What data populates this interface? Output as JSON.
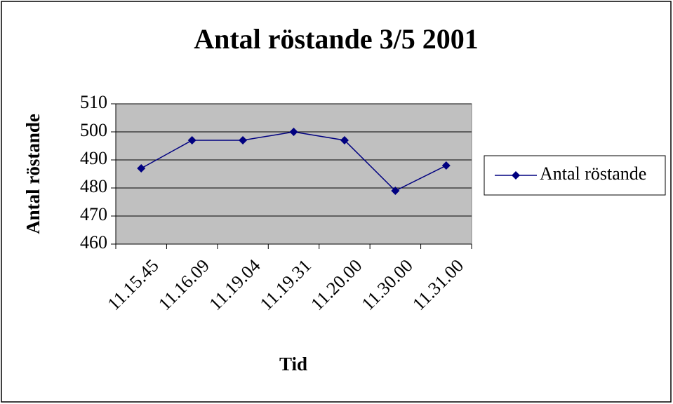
{
  "chart_data": {
    "type": "line",
    "title": "Antal röstande 3/5 2001",
    "x_label": "Tid",
    "y_label": "Antal röstande",
    "categories": [
      "11.15.45",
      "11.16.09",
      "11.19.04",
      "11.19.31",
      "11.20.00",
      "11.30.00",
      "11.31.00"
    ],
    "series": [
      {
        "name": "Antal röstande",
        "color": "#000080",
        "values": [
          487,
          497,
          497,
          500,
          497,
          479,
          488
        ]
      }
    ],
    "ylim": [
      460,
      510
    ],
    "yticks": [
      460,
      470,
      480,
      490,
      500,
      510
    ],
    "grid": true,
    "legend": "right"
  }
}
